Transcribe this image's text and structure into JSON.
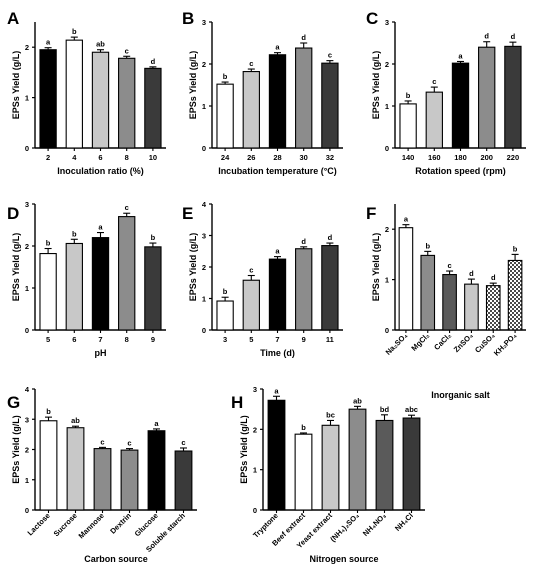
{
  "colors": {
    "black": "#000000",
    "white": "#ffffff",
    "light_gray": "#c8c8c8",
    "mid_gray": "#8c8c8c",
    "dark_gray": "#5a5a5a",
    "darker_gray": "#3a3a3a",
    "checkered": "pattern"
  },
  "chart_data": [
    {
      "panel": "A",
      "type": "bar",
      "xlabel": "Inoculation ratio (%)",
      "ylabel": "EPSs Yield (g/L)",
      "ylim": [
        0,
        2.5
      ],
      "yticks": [
        "0",
        "1",
        "2"
      ],
      "categories": [
        "2",
        "4",
        "6",
        "8",
        "10"
      ],
      "values": [
        1.95,
        2.14,
        1.9,
        1.78,
        1.58
      ],
      "errors": [
        0.04,
        0.06,
        0.05,
        0.04,
        0.03
      ],
      "letters": [
        "a",
        "b",
        "ab",
        "c",
        "d"
      ],
      "fills": [
        "black",
        "white",
        "light_gray",
        "mid_gray",
        "darker_gray"
      ]
    },
    {
      "panel": "B",
      "type": "bar",
      "xlabel": "Incubation temperature (°C)",
      "ylabel": "EPSs Yield (g/L)",
      "ylim": [
        0,
        3
      ],
      "yticks": [
        "0",
        "1",
        "2",
        "3"
      ],
      "categories": [
        "24",
        "26",
        "28",
        "30",
        "32"
      ],
      "values": [
        1.52,
        1.82,
        2.22,
        2.38,
        2.02
      ],
      "errors": [
        0.05,
        0.06,
        0.05,
        0.12,
        0.06
      ],
      "letters": [
        "b",
        "c",
        "a",
        "d",
        "c"
      ],
      "fills": [
        "white",
        "light_gray",
        "black",
        "mid_gray",
        "darker_gray"
      ]
    },
    {
      "panel": "C",
      "type": "bar",
      "xlabel": "Rotation speed (rpm)",
      "ylabel": "EPSs Yield (g/L)",
      "ylim": [
        0,
        3
      ],
      "yticks": [
        "0",
        "1",
        "2",
        "3"
      ],
      "categories": [
        "140",
        "160",
        "180",
        "200",
        "220"
      ],
      "values": [
        1.05,
        1.33,
        2.02,
        2.4,
        2.42
      ],
      "errors": [
        0.07,
        0.12,
        0.04,
        0.13,
        0.1
      ],
      "letters": [
        "b",
        "c",
        "a",
        "d",
        "d"
      ],
      "fills": [
        "white",
        "light_gray",
        "black",
        "mid_gray",
        "darker_gray"
      ]
    },
    {
      "panel": "D",
      "type": "bar",
      "xlabel": "pH",
      "ylabel": "EPSs Yield (g/L)",
      "ylim": [
        0,
        3
      ],
      "yticks": [
        "0",
        "1",
        "2",
        "3"
      ],
      "categories": [
        "5",
        "6",
        "7",
        "8",
        "9"
      ],
      "values": [
        1.82,
        2.06,
        2.2,
        2.7,
        1.98
      ],
      "errors": [
        0.12,
        0.1,
        0.12,
        0.08,
        0.09
      ],
      "letters": [
        "b",
        "b",
        "a",
        "c",
        "b"
      ],
      "fills": [
        "white",
        "light_gray",
        "black",
        "mid_gray",
        "darker_gray"
      ]
    },
    {
      "panel": "E",
      "type": "bar",
      "xlabel": "Time (d)",
      "ylabel": "EPSs Yield (g/L)",
      "ylim": [
        0,
        4
      ],
      "yticks": [
        "0",
        "1",
        "2",
        "3",
        "4"
      ],
      "categories": [
        "3",
        "5",
        "7",
        "9",
        "11"
      ],
      "values": [
        0.92,
        1.58,
        2.25,
        2.58,
        2.68
      ],
      "errors": [
        0.12,
        0.15,
        0.08,
        0.06,
        0.08
      ],
      "letters": [
        "b",
        "c",
        "a",
        "d",
        "d"
      ],
      "fills": [
        "white",
        "light_gray",
        "black",
        "mid_gray",
        "darker_gray"
      ]
    },
    {
      "panel": "F",
      "type": "bar",
      "xlabel": "Inorganic salt",
      "ylabel": "EPSs Yield (g/L)",
      "ylim": [
        0,
        2.5
      ],
      "yticks": [
        "0",
        "1",
        "2"
      ],
      "categories": [
        "Na₂SO₄",
        "MgCl₂",
        "CaCl₂",
        "ZnSO₄",
        "CuSO₄",
        "KH₂PO₄"
      ],
      "values": [
        2.03,
        1.48,
        1.1,
        0.91,
        0.88,
        1.38
      ],
      "errors": [
        0.06,
        0.08,
        0.07,
        0.1,
        0.05,
        0.12
      ],
      "letters": [
        "a",
        "b",
        "c",
        "d",
        "d",
        "b"
      ],
      "fills": [
        "white",
        "mid_gray",
        "dark_gray",
        "light_gray",
        "checkered",
        "checkered"
      ]
    },
    {
      "panel": "G",
      "type": "bar",
      "xlabel": "Carbon source",
      "ylabel": "EPSs Yield (g/L)",
      "ylim": [
        0,
        4
      ],
      "yticks": [
        "0",
        "1",
        "2",
        "3",
        "4"
      ],
      "categories": [
        "Lactose",
        "Sucrose",
        "Mannose",
        "Dextrin",
        "Glucose",
        "Soluble starch"
      ],
      "values": [
        2.95,
        2.72,
        2.03,
        1.98,
        2.62,
        1.95
      ],
      "errors": [
        0.12,
        0.05,
        0.04,
        0.05,
        0.06,
        0.1
      ],
      "letters": [
        "b",
        "ab",
        "c",
        "c",
        "a",
        "c"
      ],
      "fills": [
        "white",
        "light_gray",
        "mid_gray",
        "mid_gray",
        "black",
        "darker_gray"
      ]
    },
    {
      "panel": "H",
      "type": "bar",
      "xlabel": "Nitrogen source",
      "ylabel": "EPSs Yield (g/L)",
      "ylim": [
        0,
        3
      ],
      "yticks": [
        "0",
        "1",
        "2",
        "3"
      ],
      "categories": [
        "Tryptone",
        "Beef extract",
        "Yeast extract",
        "(NH₄)₂SO₄",
        "NH₄NO₃",
        "NH₄Cl"
      ],
      "values": [
        2.72,
        1.88,
        2.1,
        2.5,
        2.22,
        2.28
      ],
      "errors": [
        0.1,
        0.03,
        0.12,
        0.07,
        0.14,
        0.07
      ],
      "letters": [
        "a",
        "b",
        "bc",
        "ab",
        "bd",
        "abc"
      ],
      "fills": [
        "black",
        "white",
        "light_gray",
        "mid_gray",
        "dark_gray",
        "darker_gray"
      ]
    }
  ]
}
